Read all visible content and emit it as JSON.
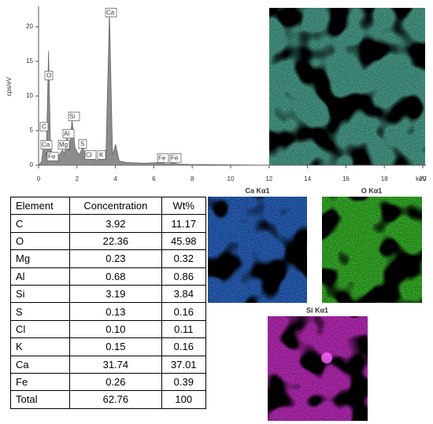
{
  "chart_data": {
    "type": "area",
    "y_label": "cps/eV",
    "x_label": "keV",
    "x": [
      0,
      0.15,
      0.28,
      0.4,
      0.52,
      0.62,
      0.7,
      0.8,
      1.0,
      1.25,
      1.35,
      1.49,
      1.6,
      1.74,
      1.9,
      2.1,
      2.31,
      2.45,
      2.62,
      2.8,
      3.1,
      3.31,
      3.5,
      3.69,
      3.85,
      4.01,
      4.2,
      4.6,
      5.5,
      6.4,
      6.6,
      7.06,
      7.3,
      8,
      10,
      12
    ],
    "values": [
      0,
      0.5,
      3.2,
      1.2,
      16.5,
      2.5,
      1.8,
      1.2,
      1.2,
      2.2,
      1.6,
      4.2,
      2.0,
      6.5,
      2.5,
      1.5,
      2.6,
      1.3,
      1.1,
      0.8,
      0.7,
      1.1,
      0.8,
      22,
      1.5,
      3.0,
      0.6,
      0.4,
      0.3,
      0.4,
      0.2,
      0.3,
      0.15,
      0.1,
      0.05,
      0
    ],
    "color": "#8c8c8c",
    "xlim": [
      0,
      20
    ],
    "xticks": [
      0,
      2,
      4,
      6,
      8,
      10,
      12,
      14,
      16,
      18,
      20
    ],
    "ylim": [
      0,
      22.5
    ],
    "yticks": [
      0,
      5,
      10,
      15,
      20
    ],
    "peak_labels": [
      "Ca",
      "O",
      "C",
      "Ca",
      "Fe",
      "Mg",
      "Al",
      "Si",
      "S",
      "Cl",
      "K",
      "Fe",
      "Fe"
    ]
  },
  "table": {
    "header": [
      "Element",
      "Concentration",
      "Wt%"
    ],
    "rows": [
      [
        "C",
        "3.92",
        "11.17"
      ],
      [
        "O",
        "22.36",
        "45.98"
      ],
      [
        "Mg",
        "0.23",
        "0.32"
      ],
      [
        "Al",
        "0.68",
        "0.86"
      ],
      [
        "Si",
        "3.19",
        "3.84"
      ],
      [
        "S",
        "0.13",
        "0.16"
      ],
      [
        "Cl",
        "0.10",
        "0.11"
      ],
      [
        "K",
        "0.15",
        "0.16"
      ],
      [
        "Ca",
        "31.74",
        "37.01"
      ],
      [
        "Fe",
        "0.26",
        "0.39"
      ],
      [
        "Total",
        "62.76",
        "100"
      ]
    ]
  },
  "maps": [
    {
      "title": "Ca Kα1"
    },
    {
      "title": "O Kα1"
    },
    {
      "title": "Si Kα1"
    }
  ]
}
